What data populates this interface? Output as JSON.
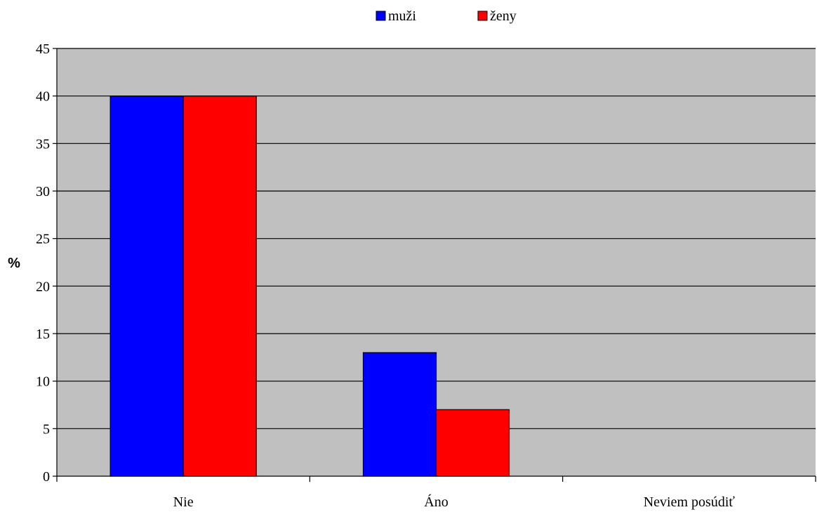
{
  "chart_data": {
    "type": "bar",
    "title": "",
    "xlabel": "",
    "ylabel": "%",
    "ylim": [
      0,
      45
    ],
    "yticks": [
      0,
      5,
      10,
      15,
      20,
      25,
      30,
      35,
      40,
      45
    ],
    "grid": true,
    "legend_position": "top-center",
    "background_color": "#c0c0c0",
    "categories": [
      "Nie",
      "Áno",
      "Neviem posúdiť"
    ],
    "series": [
      {
        "name": "muži",
        "color": "#0000ff",
        "values": [
          40,
          13,
          0
        ]
      },
      {
        "name": "ženy",
        "color": "#ff0000",
        "values": [
          40,
          7,
          0
        ]
      }
    ]
  }
}
